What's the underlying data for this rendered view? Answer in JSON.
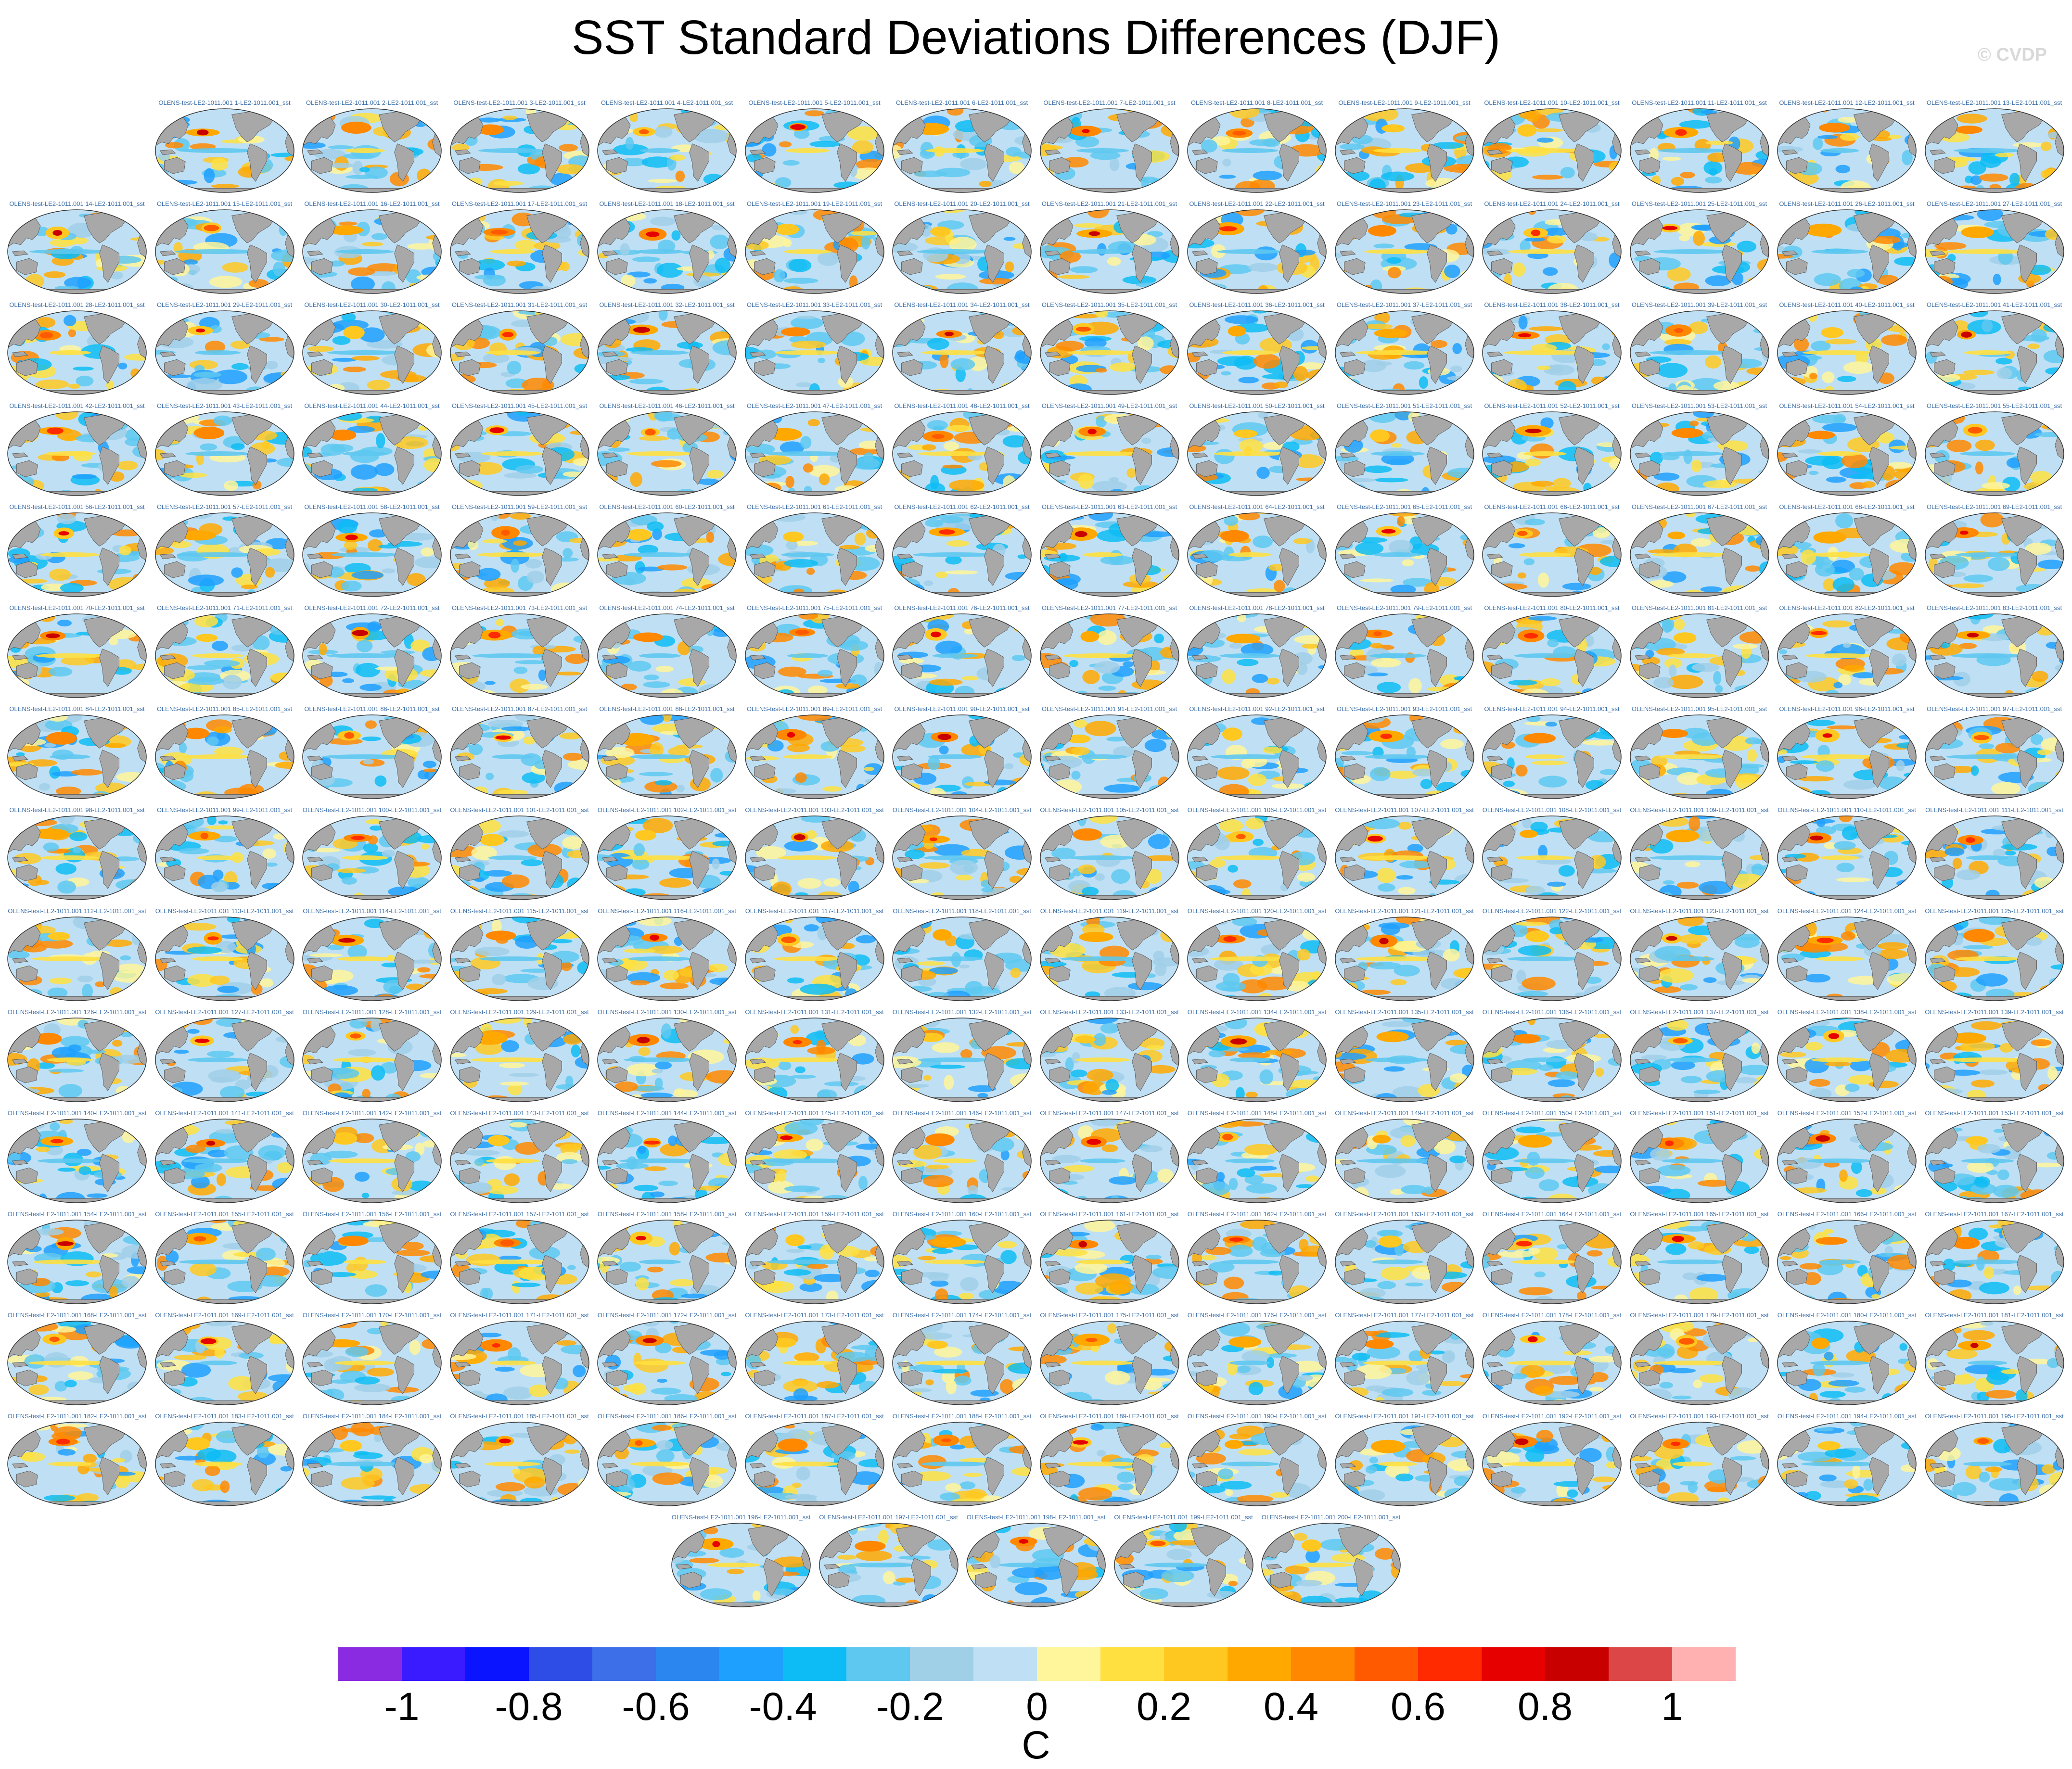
{
  "chart_data": {
    "type": "heatmap",
    "title": "SST Standard Deviations Differences (DJF)",
    "watermark": "© CVDP",
    "units": "C",
    "panel_label_template": "OLENS-test-LE2-1011.001 {n}-LE2-1011.001_sst",
    "panel_count": 200,
    "panel_rows": [
      13,
      14,
      14,
      14,
      14,
      14,
      14,
      14,
      14,
      14,
      14,
      14,
      14,
      14,
      5
    ],
    "colorbar": {
      "colors": [
        "#8a2be2",
        "#3a1aff",
        "#0a14ff",
        "#2e4ce6",
        "#3d6fe8",
        "#2b86f0",
        "#1ea0ff",
        "#0dbcf5",
        "#5ec8f0",
        "#a0cfe8",
        "#bfe0f4",
        "#fff59a",
        "#ffe040",
        "#ffc820",
        "#ffa800",
        "#ff8800",
        "#ff5a00",
        "#ff2a00",
        "#e60000",
        "#c80000",
        "#dc4646",
        "#ffb0b0"
      ],
      "tick_labels": [
        "-1",
        "-0.8",
        "-0.6",
        "-0.4",
        "-0.2",
        "0",
        "0.2",
        "0.4",
        "0.6",
        "0.8",
        "1"
      ],
      "range": [
        -1.1,
        1.1
      ],
      "step": 0.1
    },
    "map_colors": {
      "ocean_base": "#bfe0f4",
      "land": "#a8a8a8",
      "coast": "#555555"
    }
  }
}
